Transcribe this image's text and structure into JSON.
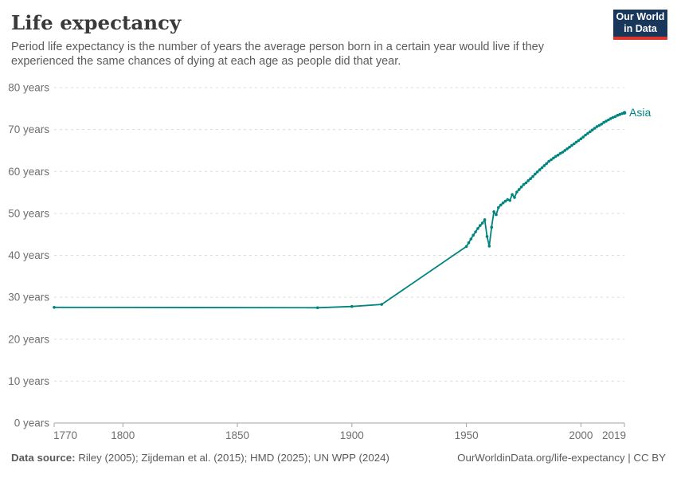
{
  "header": {
    "title": "Life expectancy",
    "subtitle": "Period life expectancy is the number of years the average person born in a certain year would live if they experienced the same chances of dying at each age as people did that year.",
    "logo": {
      "line1": "Our World",
      "line2": "in Data"
    }
  },
  "chart_data": {
    "type": "line",
    "title": "Life expectancy",
    "x_axis": {
      "range": [
        1770,
        2019
      ],
      "ticks": [
        1770,
        1800,
        1850,
        1900,
        1950,
        2000,
        2019
      ]
    },
    "y_axis": {
      "range": [
        0,
        80
      ],
      "ticks": [
        0,
        10,
        20,
        30,
        40,
        50,
        60,
        70,
        80
      ],
      "tick_suffix": " years"
    },
    "grid": "horizontal-dashed",
    "legend_position": "line-end-label",
    "series": [
      {
        "name": "Asia",
        "color": "#00847E",
        "points": [
          [
            1770,
            27.6
          ],
          [
            1885,
            27.5
          ],
          [
            1900,
            27.8
          ],
          [
            1913,
            28.3
          ],
          [
            1950,
            42.1
          ],
          [
            1951,
            43.0
          ],
          [
            1952,
            43.9
          ],
          [
            1953,
            44.8
          ],
          [
            1954,
            45.6
          ],
          [
            1955,
            46.4
          ],
          [
            1956,
            47.1
          ],
          [
            1957,
            47.7
          ],
          [
            1958,
            48.5
          ],
          [
            1959,
            44.5
          ],
          [
            1960,
            42.2
          ],
          [
            1961,
            46.7
          ],
          [
            1962,
            50.4
          ],
          [
            1963,
            49.7
          ],
          [
            1964,
            51.4
          ],
          [
            1965,
            52.0
          ],
          [
            1966,
            52.5
          ],
          [
            1967,
            52.9
          ],
          [
            1968,
            53.3
          ],
          [
            1969,
            53.1
          ],
          [
            1970,
            54.5
          ],
          [
            1971,
            53.8
          ],
          [
            1972,
            55.1
          ],
          [
            1973,
            55.7
          ],
          [
            1974,
            56.3
          ],
          [
            1975,
            56.9
          ],
          [
            1976,
            57.3
          ],
          [
            1977,
            57.8
          ],
          [
            1978,
            58.3
          ],
          [
            1979,
            58.8
          ],
          [
            1980,
            59.4
          ],
          [
            1981,
            59.9
          ],
          [
            1982,
            60.4
          ],
          [
            1983,
            60.9
          ],
          [
            1984,
            61.4
          ],
          [
            1985,
            61.9
          ],
          [
            1986,
            62.4
          ],
          [
            1987,
            62.8
          ],
          [
            1988,
            63.2
          ],
          [
            1989,
            63.6
          ],
          [
            1990,
            63.9
          ],
          [
            1991,
            64.3
          ],
          [
            1992,
            64.6
          ],
          [
            1993,
            65.0
          ],
          [
            1994,
            65.4
          ],
          [
            1995,
            65.8
          ],
          [
            1996,
            66.2
          ],
          [
            1997,
            66.6
          ],
          [
            1998,
            67.0
          ],
          [
            1999,
            67.4
          ],
          [
            2000,
            67.8
          ],
          [
            2001,
            68.2
          ],
          [
            2002,
            68.7
          ],
          [
            2003,
            69.1
          ],
          [
            2004,
            69.5
          ],
          [
            2005,
            69.9
          ],
          [
            2006,
            70.3
          ],
          [
            2007,
            70.7
          ],
          [
            2008,
            71.0
          ],
          [
            2009,
            71.3
          ],
          [
            2010,
            71.7
          ],
          [
            2011,
            72.0
          ],
          [
            2012,
            72.3
          ],
          [
            2013,
            72.6
          ],
          [
            2014,
            72.9
          ],
          [
            2015,
            73.1
          ],
          [
            2016,
            73.4
          ],
          [
            2017,
            73.6
          ],
          [
            2018,
            73.8
          ],
          [
            2019,
            74.0
          ]
        ]
      }
    ]
  },
  "footer": {
    "data_source_label": "Data source:",
    "data_source_text": " Riley (2005); Zijdeman et al. (2015); HMD (2025); UN WPP (2024)",
    "link_text": "OurWorldinData.org/life-expectancy | CC BY"
  },
  "colors": {
    "accent_teal": "#00847E",
    "logo_navy": "#18375a",
    "logo_red": "#dc352b",
    "text_gray": "#5b5b5b",
    "axis_label_gray": "#6e6e6e",
    "grid_gray": "#dcdcdc"
  }
}
